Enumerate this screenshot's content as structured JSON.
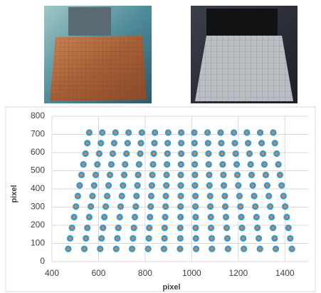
{
  "chart_data": {
    "type": "scatter",
    "x_label": "pixel",
    "y_label": "pixel",
    "xlim": [
      400,
      1500
    ],
    "ylim": [
      0,
      800
    ],
    "xticks": [
      400,
      600,
      800,
      1000,
      1200,
      1400
    ],
    "yticks": [
      0,
      100,
      200,
      300,
      400,
      500,
      600,
      700,
      800
    ],
    "grid": true,
    "series": [
      {
        "color": "#2e9bd6",
        "marker": "circle",
        "x": [
          470,
          539,
          607,
          676,
          744,
          813,
          881,
          950,
          1019,
          1087,
          1156,
          1224,
          1293,
          1361,
          1430,
          478,
          546,
          613,
          681,
          748,
          816,
          883,
          951,
          1018,
          1086,
          1153,
          1221,
          1288,
          1356,
          1423,
          486,
          552,
          619,
          685,
          752,
          818,
          884,
          951,
          1017,
          1083,
          1150,
          1216,
          1282,
          1349,
          1415,
          495,
          560,
          625,
          691,
          756,
          821,
          886,
          952,
          1017,
          1082,
          1147,
          1213,
          1278,
          1343,
          1408,
          503,
          567,
          631,
          695,
          760,
          824,
          888,
          952,
          1016,
          1080,
          1144,
          1209,
          1273,
          1337,
          1401,
          511,
          574,
          637,
          700,
          763,
          826,
          889,
          953,
          1016,
          1079,
          1142,
          1205,
          1268,
          1331,
          1394,
          519,
          581,
          643,
          705,
          767,
          829,
          891,
          953,
          1014,
          1076,
          1138,
          1200,
          1262,
          1324,
          1386,
          527,
          588,
          649,
          710,
          770,
          831,
          892,
          953,
          1014,
          1075,
          1136,
          1196,
          1257,
          1318,
          1379,
          535,
          595,
          655,
          714,
          774,
          834,
          894,
          954,
          1013,
          1073,
          1133,
          1193,
          1253,
          1312,
          1372,
          544,
          603,
          661,
          720,
          779,
          837,
          896,
          955,
          1013,
          1072,
          1130,
          1189,
          1248,
          1306,
          1365,
          552,
          610,
          667,
          725,
          782,
          840,
          897,
          955,
          1012,
          1070,
          1127,
          1185,
          1242,
          1300,
          1357,
          560,
          616,
          673,
          729,
          786,
          842,
          899,
          955,
          1011,
          1068,
          1124,
          1181,
          1237,
          1294,
          1350
        ],
        "y": [
          70,
          70,
          70,
          70,
          70,
          70,
          70,
          70,
          70,
          70,
          70,
          70,
          70,
          70,
          70,
          128,
          128,
          128,
          128,
          128,
          128,
          128,
          128,
          128,
          128,
          128,
          128,
          128,
          128,
          128,
          186,
          186,
          186,
          186,
          186,
          186,
          186,
          186,
          186,
          186,
          186,
          186,
          186,
          186,
          186,
          245,
          245,
          245,
          245,
          245,
          245,
          245,
          245,
          245,
          245,
          245,
          245,
          245,
          245,
          245,
          303,
          303,
          303,
          303,
          303,
          303,
          303,
          303,
          303,
          303,
          303,
          303,
          303,
          303,
          303,
          361,
          361,
          361,
          361,
          361,
          361,
          361,
          361,
          361,
          361,
          361,
          361,
          361,
          361,
          361,
          419,
          419,
          419,
          419,
          419,
          419,
          419,
          419,
          419,
          419,
          419,
          419,
          419,
          419,
          419,
          477,
          477,
          477,
          477,
          477,
          477,
          477,
          477,
          477,
          477,
          477,
          477,
          477,
          477,
          477,
          535,
          535,
          535,
          535,
          535,
          535,
          535,
          535,
          535,
          535,
          535,
          535,
          535,
          535,
          535,
          594,
          594,
          594,
          594,
          594,
          594,
          594,
          594,
          594,
          594,
          594,
          594,
          594,
          594,
          594,
          652,
          652,
          652,
          652,
          652,
          652,
          652,
          652,
          652,
          652,
          652,
          652,
          652,
          652,
          652,
          710,
          710,
          710,
          710,
          710,
          710,
          710,
          710,
          710,
          710,
          710,
          710,
          710,
          710,
          710
        ]
      },
      {
        "color": "#ed7d31",
        "marker": "dot",
        "x": [
          470,
          539,
          607,
          676,
          744,
          813,
          881,
          950,
          1019,
          1087,
          1156,
          1224,
          1293,
          1361,
          1430,
          478,
          546,
          613,
          681,
          748,
          816,
          883,
          951,
          1018,
          1086,
          1153,
          1221,
          1288,
          1356,
          1423,
          486,
          552,
          619,
          685,
          752,
          818,
          884,
          951,
          1017,
          1083,
          1150,
          1216,
          1282,
          1349,
          1415,
          495,
          560,
          625,
          691,
          756,
          821,
          886,
          952,
          1017,
          1082,
          1147,
          1213,
          1278,
          1343,
          1408,
          503,
          567,
          631,
          695,
          760,
          824,
          888,
          952,
          1016,
          1080,
          1144,
          1209,
          1273,
          1337,
          1401,
          511,
          574,
          637,
          700,
          763,
          826,
          889,
          953,
          1016,
          1079,
          1142,
          1205,
          1268,
          1331,
          1394,
          519,
          581,
          643,
          705,
          767,
          829,
          891,
          953,
          1014,
          1076,
          1138,
          1200,
          1262,
          1324,
          1386,
          527,
          588,
          649,
          710,
          770,
          831,
          892,
          953,
          1014,
          1075,
          1136,
          1196,
          1257,
          1318,
          1379,
          535,
          595,
          655,
          714,
          774,
          834,
          894,
          954,
          1013,
          1073,
          1133,
          1193,
          1253,
          1312,
          1372,
          544,
          603,
          661,
          720,
          779,
          837,
          896,
          955,
          1013,
          1072,
          1130,
          1189,
          1248,
          1306,
          1365,
          552,
          610,
          667,
          725,
          782,
          840,
          897,
          955,
          1012,
          1070,
          1127,
          1185,
          1242,
          1300,
          1357,
          560,
          616,
          673,
          729,
          786,
          842,
          899,
          955,
          1011,
          1068,
          1124,
          1181,
          1237,
          1294,
          1350
        ],
        "y": [
          70,
          70,
          70,
          70,
          70,
          70,
          70,
          70,
          70,
          70,
          70,
          70,
          70,
          70,
          70,
          128,
          128,
          128,
          128,
          128,
          128,
          128,
          128,
          128,
          128,
          128,
          128,
          128,
          128,
          128,
          186,
          186,
          186,
          186,
          186,
          186,
          186,
          186,
          186,
          186,
          186,
          186,
          186,
          186,
          186,
          245,
          245,
          245,
          245,
          245,
          245,
          245,
          245,
          245,
          245,
          245,
          245,
          245,
          245,
          245,
          303,
          303,
          303,
          303,
          303,
          303,
          303,
          303,
          303,
          303,
          303,
          303,
          303,
          303,
          303,
          361,
          361,
          361,
          361,
          361,
          361,
          361,
          361,
          361,
          361,
          361,
          361,
          361,
          361,
          361,
          419,
          419,
          419,
          419,
          419,
          419,
          419,
          419,
          419,
          419,
          419,
          419,
          419,
          419,
          419,
          477,
          477,
          477,
          477,
          477,
          477,
          477,
          477,
          477,
          477,
          477,
          477,
          477,
          477,
          477,
          535,
          535,
          535,
          535,
          535,
          535,
          535,
          535,
          535,
          535,
          535,
          535,
          535,
          535,
          535,
          594,
          594,
          594,
          594,
          594,
          594,
          594,
          594,
          594,
          594,
          594,
          594,
          594,
          594,
          594,
          652,
          652,
          652,
          652,
          652,
          652,
          652,
          652,
          652,
          652,
          652,
          652,
          652,
          652,
          652,
          710,
          710,
          710,
          710,
          710,
          710,
          710,
          710,
          710,
          710,
          710,
          710,
          710,
          710,
          710
        ]
      }
    ]
  }
}
